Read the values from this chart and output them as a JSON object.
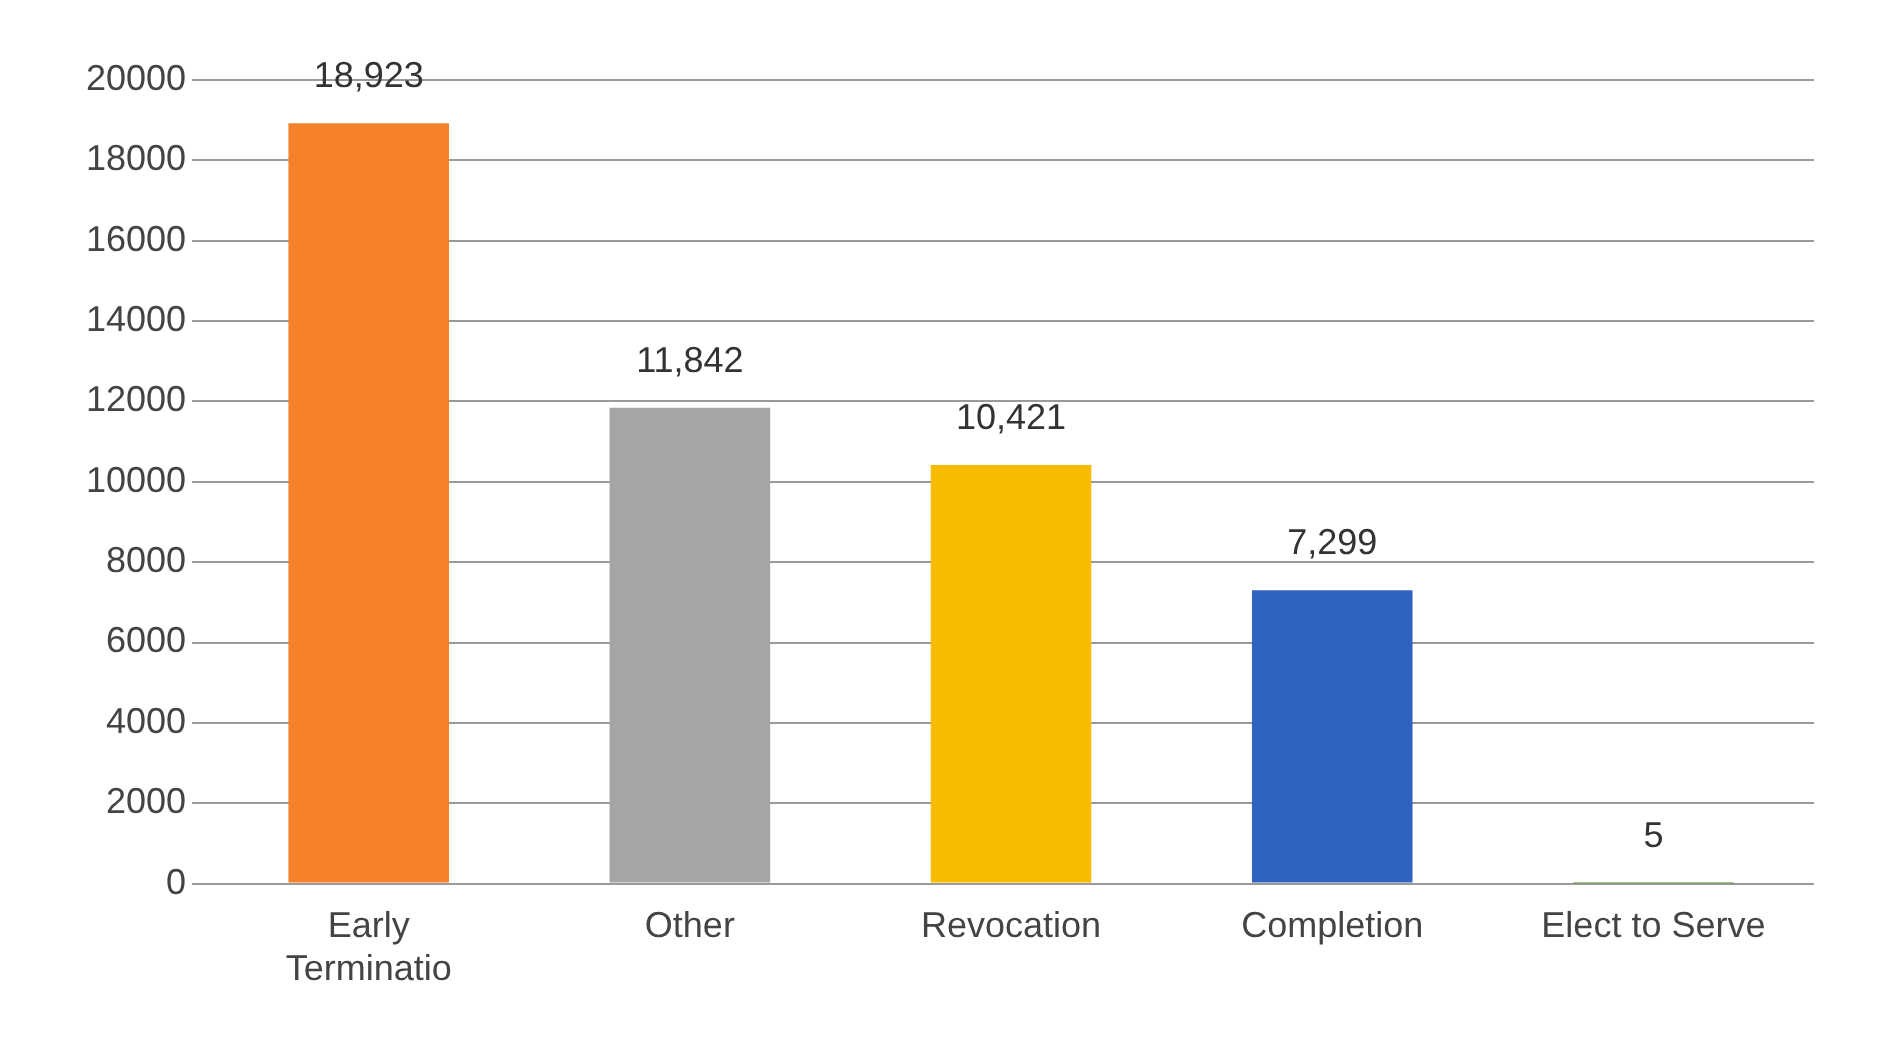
{
  "chart_data": {
    "type": "bar",
    "categories": [
      "Early Terminatio",
      "Other",
      "Revocation",
      "Completion",
      "Elect to Serve"
    ],
    "values": [
      18923,
      11842,
      10421,
      7299,
      5
    ],
    "value_labels": [
      "18,923",
      "11,842",
      "10,421",
      "7,299",
      "5"
    ],
    "colors": [
      "#f5822a",
      "#a5a5a5",
      "#f7bb00",
      "#2f63bf",
      "#4b8a2d"
    ],
    "ylim": [
      0,
      20000
    ],
    "yticks": [
      0,
      2000,
      4000,
      6000,
      8000,
      10000,
      12000,
      14000,
      16000,
      18000,
      20000
    ],
    "grid": "y",
    "legend": false
  }
}
